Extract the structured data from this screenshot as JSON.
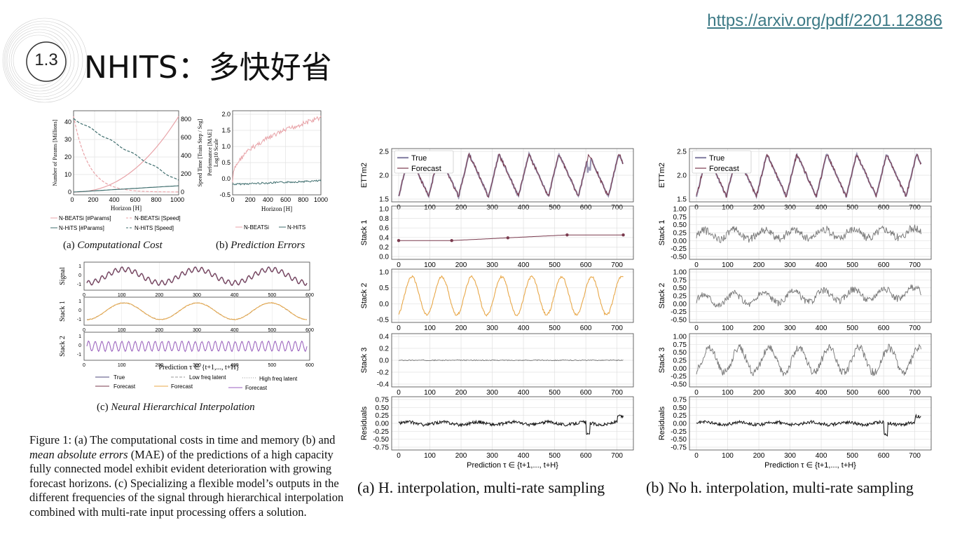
{
  "header": {
    "section_number": "1.3",
    "title": "NHITS：多快好省",
    "url": "https://arxiv.org/pdf/2201.12886"
  },
  "figure1": {
    "caption_parts": [
      "Figure 1: (a) The computational costs in time and memory (b) and ",
      "mean absolute errors",
      " (MAE) of the predictions of a high capacity fully connected model exhibit evident deterioration with growing forecast horizons. (c) Specializing a flexible model’s outputs in the different frequencies of the signal through hierarchical interpolation combined with multi-rate input processing offers a solution."
    ],
    "panel_a": {
      "caption_label": "(a) ",
      "caption_text": "Computational Cost",
      "xlabel": "Horizon [H]",
      "ylabel_left": "Number of Params [Millions]",
      "ylabel_right": "Speed Time [Train Step / Seg]",
      "xticks": [
        "0",
        "200",
        "400",
        "600",
        "800",
        "1000"
      ],
      "yticks_left": [
        "0",
        "10",
        "20",
        "30",
        "40"
      ],
      "yticks_right": [
        "0",
        "200",
        "400",
        "600",
        "800"
      ],
      "legend": [
        "N-BEATSi [#Params]",
        "N-BEATSi [Speed]",
        "N-HiTS [#Params]",
        "N-HiTS [Speed]"
      ]
    },
    "panel_b": {
      "caption_label": "(b) ",
      "caption_text": "Prediction Errors",
      "xlabel": "Horizon [H]",
      "ylabel": "Performance [MAE]",
      "ylabel2": "Log10 Scale",
      "xticks": [
        "0",
        "200",
        "400",
        "600",
        "800",
        "1000"
      ],
      "yticks": [
        "-0.5",
        "0.0",
        "0.5",
        "1.0",
        "1.5",
        "2.0"
      ],
      "legend": [
        "N-BEATSi",
        "N-HiTS"
      ]
    },
    "panel_c": {
      "caption_label": "(c) ",
      "caption_text": "Neural Hierarchical Interpolation",
      "xlabel": "Prediction τ ∈ {t+1,..., t+H}",
      "rows": [
        "Signal",
        "Stack 1",
        "Stack 2"
      ],
      "xticks": [
        "0",
        "100",
        "200",
        "300",
        "400",
        "500",
        "600"
      ],
      "yticks": [
        "1",
        "0",
        "-1"
      ],
      "legend": [
        "True",
        "Low freq latent",
        "High freq latent",
        "Forecast",
        "Forecast",
        "Forecast"
      ]
    }
  },
  "figure2": {
    "panel_a_caption": "(a)  H. interpolation, multi-rate sampling",
    "panel_b_caption": "(b)  No h. interpolation, multi-rate sampling",
    "xlabel": "Prediction τ ∈ {t+1,..., t+H}",
    "xticks": [
      "0",
      "100",
      "200",
      "300",
      "400",
      "500",
      "600",
      "700"
    ],
    "row_labels": [
      "ETTm2",
      "Stack 1",
      "Stack 2",
      "Stack 3",
      "Residuals"
    ],
    "legend": [
      "True",
      "Forecast"
    ],
    "yticks_a": [
      [
        "1.5",
        "2.0",
        "2.5"
      ],
      [
        "0.0",
        "0.2",
        "0.4",
        "0.6",
        "0.8",
        "1.0"
      ],
      [
        "-0.5",
        "0.0",
        "0.5",
        "1.0"
      ],
      [
        "-0.4",
        "-0.2",
        "0.0",
        "0.2",
        "0.4"
      ],
      [
        "-0.75",
        "-0.50",
        "-0.25",
        "0.00",
        "0.25",
        "0.50",
        "0.75"
      ]
    ],
    "yticks_b": [
      [
        "1.5",
        "2.0",
        "2.5"
      ],
      [
        "-0.50",
        "-0.25",
        "0.00",
        "0.25",
        "0.50",
        "0.75",
        "1.00"
      ],
      [
        "-0.50",
        "-0.25",
        "0.00",
        "0.25",
        "0.50",
        "0.75",
        "1.00"
      ],
      [
        "-0.50",
        "-0.25",
        "0.00",
        "0.25",
        "0.50",
        "0.75",
        "1.00"
      ],
      [
        "-0.75",
        "-0.50",
        "-0.25",
        "0.00",
        "0.25",
        "0.50",
        "0.75"
      ]
    ]
  },
  "colors": {
    "accent_link": "#3d7a86",
    "true_series": "#8a86a8",
    "forecast_series": "#7a3a4e",
    "stack2_a": "#e8a84a",
    "nbeats": "#e8a3a8",
    "nhits": "#3f6e6e",
    "grey_series": "#777777"
  }
}
